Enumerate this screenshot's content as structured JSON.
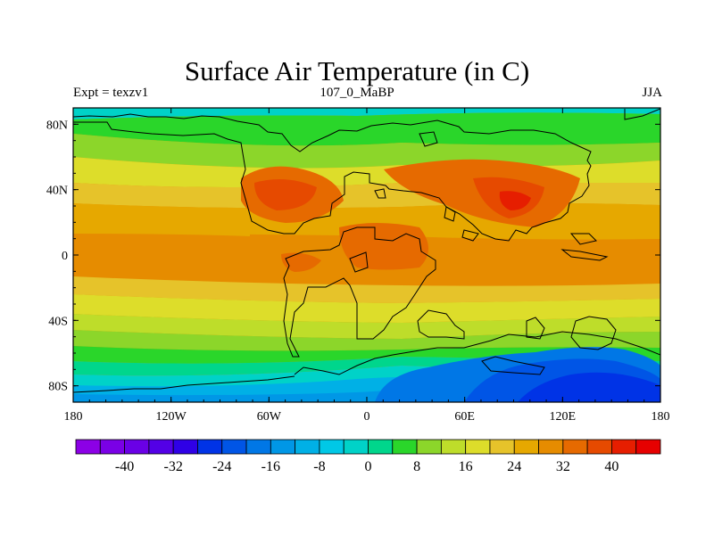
{
  "title": "Surface Air Temperature (in C)",
  "left_label": "Expt = texzv1",
  "center_label": "107_0_MaBP",
  "right_label": "JJA",
  "x_ticks": [
    {
      "value": -180,
      "label": "180"
    },
    {
      "value": -120,
      "label": "120W"
    },
    {
      "value": -60,
      "label": "60W"
    },
    {
      "value": 0,
      "label": "0"
    },
    {
      "value": 60,
      "label": "60E"
    },
    {
      "value": 120,
      "label": "120E"
    },
    {
      "value": 180,
      "label": "180"
    }
  ],
  "y_ticks": [
    {
      "value": 80,
      "label": "80N"
    },
    {
      "value": 40,
      "label": "40N"
    },
    {
      "value": 0,
      "label": "0"
    },
    {
      "value": -40,
      "label": "40S"
    },
    {
      "value": -80,
      "label": "80S"
    }
  ],
  "colorbar": {
    "colors": [
      "#8c00e6",
      "#7a00e6",
      "#6a00e6",
      "#5300e6",
      "#2f00e6",
      "#0033e6",
      "#0055e6",
      "#0077e6",
      "#0097e6",
      "#00b0e6",
      "#00c8e6",
      "#00d2c8",
      "#00d68c",
      "#2ad62a",
      "#8cd62a",
      "#bedd2a",
      "#dddd2a",
      "#e6c32a",
      "#e6a800",
      "#e68c00",
      "#e66a00",
      "#e64a00",
      "#e61e00",
      "#e60000"
    ],
    "labels": [
      {
        "value": -40,
        "label": "-40"
      },
      {
        "value": -32,
        "label": "-32"
      },
      {
        "value": -24,
        "label": "-24"
      },
      {
        "value": -16,
        "label": "-16"
      },
      {
        "value": -8,
        "label": "-8"
      },
      {
        "value": 0,
        "label": "0"
      },
      {
        "value": 8,
        "label": "8"
      },
      {
        "value": 16,
        "label": "16"
      },
      {
        "value": 24,
        "label": "24"
      },
      {
        "value": 32,
        "label": "32"
      },
      {
        "value": 40,
        "label": "40"
      }
    ],
    "min": -48,
    "max": 48
  },
  "extent": {
    "lon": [
      -180,
      180
    ],
    "lat": [
      -90,
      90
    ]
  }
}
